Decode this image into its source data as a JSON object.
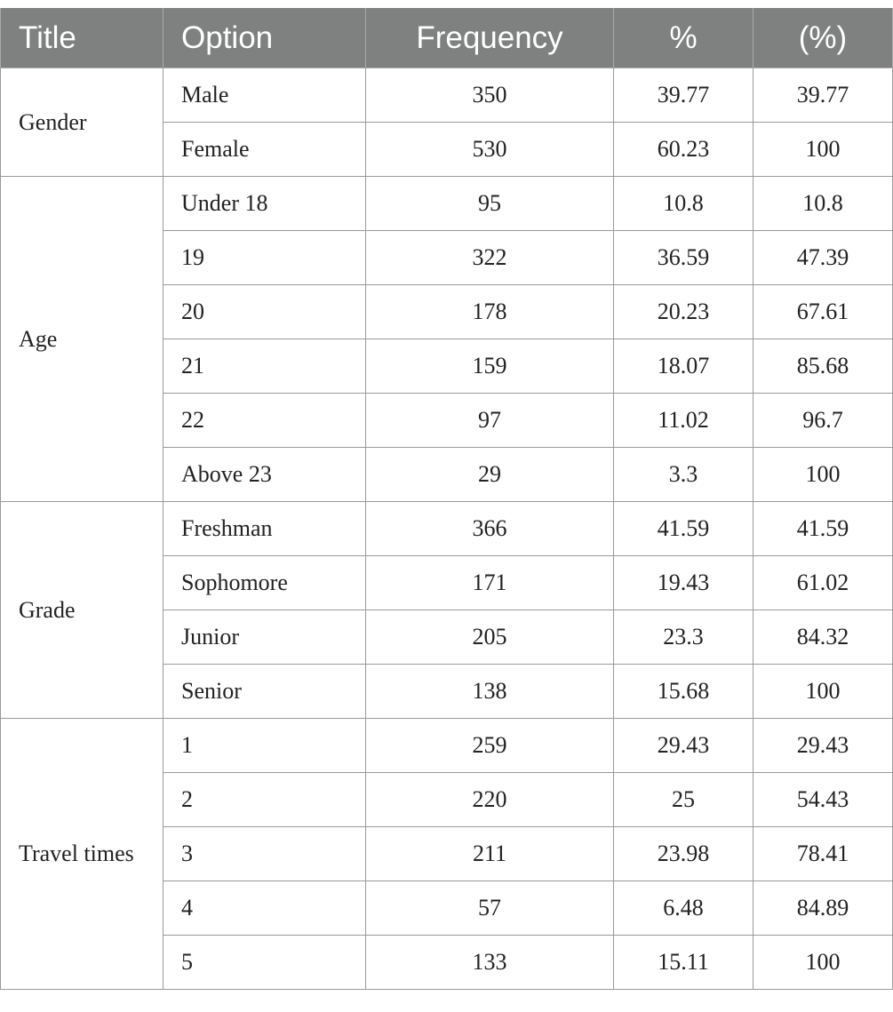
{
  "headers": [
    "Title",
    "Option",
    "Frequency",
    "%",
    "(%)"
  ],
  "groups": [
    {
      "title": "Gender",
      "rows": [
        {
          "option": "Male",
          "frequency": "350",
          "percent": "39.77",
          "cumulative": "39.77"
        },
        {
          "option": "Female",
          "frequency": "530",
          "percent": "60.23",
          "cumulative": "100"
        }
      ]
    },
    {
      "title": "Age",
      "rows": [
        {
          "option": "Under 18",
          "frequency": "95",
          "percent": "10.8",
          "cumulative": "10.8"
        },
        {
          "option": "19",
          "frequency": "322",
          "percent": "36.59",
          "cumulative": "47.39"
        },
        {
          "option": "20",
          "frequency": "178",
          "percent": "20.23",
          "cumulative": "67.61"
        },
        {
          "option": "21",
          "frequency": "159",
          "percent": "18.07",
          "cumulative": "85.68"
        },
        {
          "option": "22",
          "frequency": "97",
          "percent": "11.02",
          "cumulative": "96.7"
        },
        {
          "option": "Above 23",
          "frequency": "29",
          "percent": "3.3",
          "cumulative": "100"
        }
      ]
    },
    {
      "title": "Grade",
      "rows": [
        {
          "option": "Freshman",
          "frequency": "366",
          "percent": "41.59",
          "cumulative": "41.59"
        },
        {
          "option": "Sophomore",
          "frequency": "171",
          "percent": "19.43",
          "cumulative": "61.02"
        },
        {
          "option": "Junior",
          "frequency": "205",
          "percent": "23.3",
          "cumulative": "84.32"
        },
        {
          "option": "Senior",
          "frequency": "138",
          "percent": "15.68",
          "cumulative": "100"
        }
      ]
    },
    {
      "title": "Travel times",
      "rows": [
        {
          "option": "1",
          "frequency": "259",
          "percent": "29.43",
          "cumulative": "29.43"
        },
        {
          "option": "2",
          "frequency": "220",
          "percent": "25",
          "cumulative": "54.43"
        },
        {
          "option": "3",
          "frequency": "211",
          "percent": "23.98",
          "cumulative": "78.41"
        },
        {
          "option": "4",
          "frequency": "57",
          "percent": "6.48",
          "cumulative": "84.89"
        },
        {
          "option": "5",
          "frequency": "133",
          "percent": "15.11",
          "cumulative": "100"
        }
      ]
    }
  ]
}
